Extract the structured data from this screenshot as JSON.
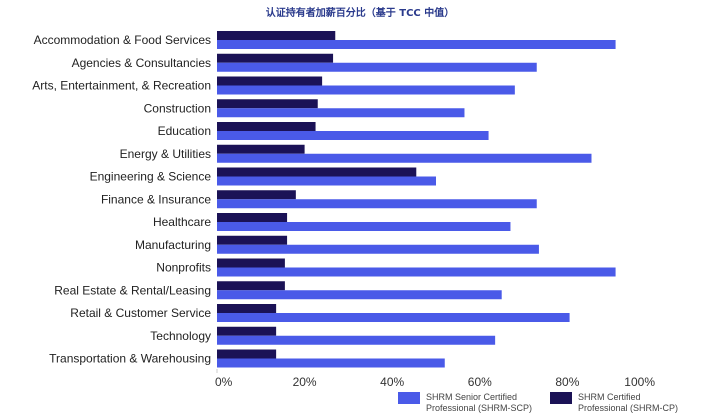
{
  "chart_data": {
    "type": "bar",
    "orientation": "horizontal",
    "title": "认证持有者加薪百分比（基于 TCC 中值）",
    "categories": [
      "Accommodation & Food Services",
      "Agencies & Consultancies",
      "Arts, Entertainment, & Recreation",
      "Construction",
      "Education",
      "Energy & Utilities",
      "Engineering & Science",
      "Finance & Insurance",
      "Healthcare",
      "Manufacturing",
      "Nonprofits",
      "Real Estate & Rental/Leasing",
      "Retail & Customer Service",
      "Technology",
      "Transportation & Warehousing"
    ],
    "series": [
      {
        "name": "SHRM Certified Professional (SHRM-CP)",
        "color": "#1b1256",
        "values": [
          27,
          26.5,
          24,
          23,
          22.5,
          20,
          45.5,
          18,
          16,
          16,
          15.5,
          15.5,
          13.5,
          13.5,
          13.5
        ]
      },
      {
        "name": "SHRM Senior Certified Professional (SHRM-SCP)",
        "color": "#4a5ae8",
        "values": [
          91,
          73,
          68,
          56.5,
          62,
          85.5,
          50,
          73,
          67,
          73.5,
          91,
          65,
          80.5,
          63.5,
          52
        ]
      }
    ],
    "xlim": [
      0,
      100
    ],
    "xticks": [
      "0%",
      "20%",
      "40%",
      "60%",
      "80%",
      "100%"
    ],
    "grid": false,
    "legend": {
      "placement": "bottom-right",
      "entries": [
        {
          "label": "SHRM Senior Certified Professional (SHRM-SCP)",
          "color": "#4a5ae8"
        },
        {
          "label": "SHRM Certified Professional (SHRM-CP)",
          "color": "#1b1256"
        }
      ]
    }
  }
}
